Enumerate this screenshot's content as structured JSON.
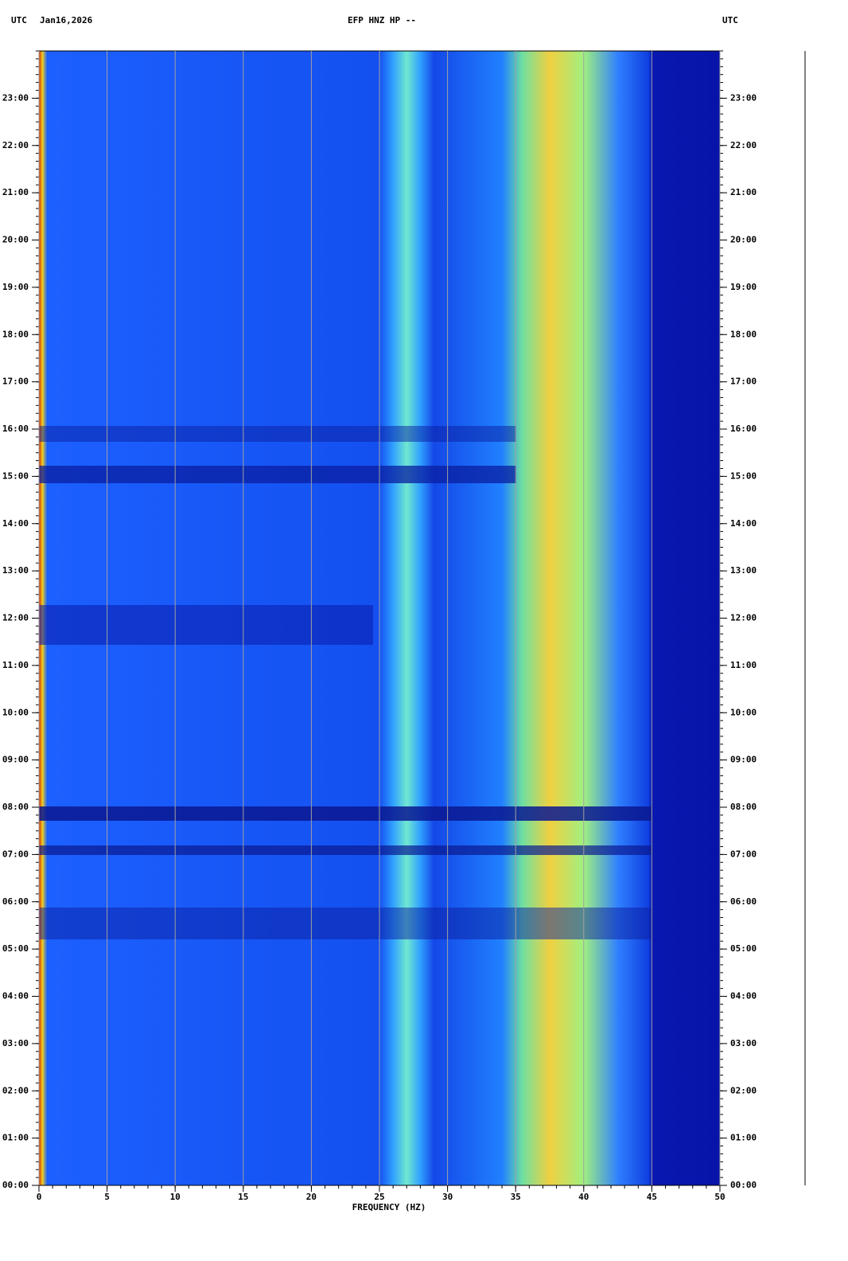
{
  "chart_data": {
    "type": "spectrogram",
    "header": {
      "left_zone": "UTC",
      "date": "Jan16,2026",
      "title": "EFP HNZ HP --",
      "right_zone": "UTC"
    },
    "x_label": "FREQUENCY (HZ)",
    "xlim": [
      0,
      50
    ],
    "xticks": [
      0,
      5,
      10,
      15,
      20,
      25,
      30,
      35,
      40,
      45,
      50
    ],
    "ylim": [
      0,
      24
    ],
    "yticks": [
      {
        "value": 0,
        "label": "00:00"
      },
      {
        "value": 1,
        "label": "01:00"
      },
      {
        "value": 2,
        "label": "02:00"
      },
      {
        "value": 3,
        "label": "03:00"
      },
      {
        "value": 4,
        "label": "04:00"
      },
      {
        "value": 5,
        "label": "05:00"
      },
      {
        "value": 6,
        "label": "06:00"
      },
      {
        "value": 7,
        "label": "07:00"
      },
      {
        "value": 8,
        "label": "08:00"
      },
      {
        "value": 9,
        "label": "09:00"
      },
      {
        "value": 10,
        "label": "10:00"
      },
      {
        "value": 11,
        "label": "11:00"
      },
      {
        "value": 12,
        "label": "12:00"
      },
      {
        "value": 13,
        "label": "13:00"
      },
      {
        "value": 14,
        "label": "14:00"
      },
      {
        "value": 15,
        "label": "15:00"
      },
      {
        "value": 16,
        "label": "16:00"
      },
      {
        "value": 17,
        "label": "17:00"
      },
      {
        "value": 18,
        "label": "18:00"
      },
      {
        "value": 19,
        "label": "19:00"
      },
      {
        "value": 20,
        "label": "20:00"
      },
      {
        "value": 21,
        "label": "21:00"
      },
      {
        "value": 22,
        "label": "22:00"
      },
      {
        "value": 23,
        "label": "23:00"
      }
    ],
    "grid": true
  }
}
